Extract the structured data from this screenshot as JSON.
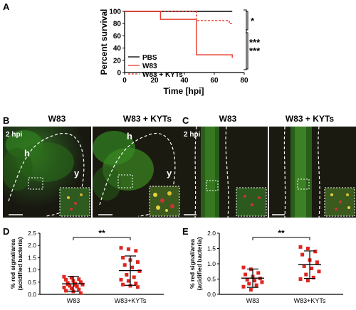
{
  "panels": {
    "A": "A",
    "B": "B",
    "C": "C",
    "D": "D",
    "E": "E"
  },
  "chart_data": [
    {
      "id": "A",
      "type": "line",
      "xlabel": "Time [hpi]",
      "ylabel": "Percent survival",
      "xlim": [
        0,
        80
      ],
      "ylim": [
        0,
        100
      ],
      "xticks": [
        "0",
        "20",
        "40",
        "60",
        "80"
      ],
      "yticks": [
        "0",
        "20",
        "40",
        "60",
        "80",
        "100"
      ],
      "legend_position": "left-bottom",
      "series": [
        {
          "name": "PBS",
          "color": "#000000",
          "dash": "solid",
          "steps": [
            [
              0,
              100
            ],
            [
              72,
              100
            ]
          ]
        },
        {
          "name": "W83",
          "color": "#e8392f",
          "dash": "solid",
          "steps": [
            [
              0,
              100
            ],
            [
              24,
              100
            ],
            [
              24,
              87
            ],
            [
              48,
              87
            ],
            [
              48,
              29
            ],
            [
              72,
              29
            ],
            [
              72,
              24
            ]
          ]
        },
        {
          "name": "W83 + KYTs",
          "color": "#e8392f",
          "dash": "dashed",
          "steps": [
            [
              0,
              100
            ],
            [
              48,
              100
            ],
            [
              48,
              85
            ],
            [
              70,
              85
            ],
            [
              70,
              80
            ],
            [
              72,
              80
            ],
            [
              72,
              79
            ]
          ]
        }
      ],
      "significance": [
        "*",
        "***",
        "***"
      ]
    },
    {
      "id": "D",
      "type": "scatter",
      "ylabel_line1": "% red signal/area",
      "ylabel_line2": "(acidified bacteria)",
      "categories": [
        "W83",
        "W83+KYTs"
      ],
      "yticks": [
        "0.0",
        "0.5",
        "1.0",
        "1.5",
        "2.0",
        "2.5"
      ],
      "ylim": [
        0,
        2.5
      ],
      "significance": "**",
      "groups": [
        {
          "name": "W83",
          "mean": 0.43,
          "sd": 0.3,
          "points": [
            0.72,
            0.68,
            0.62,
            0.6,
            0.55,
            0.5,
            0.47,
            0.44,
            0.4,
            0.35,
            0.32,
            0.28,
            0.25,
            0.2,
            0.15,
            0.12,
            0.05,
            0.42,
            0.38
          ]
        },
        {
          "name": "W83+KYTs",
          "mean": 0.97,
          "sd": 0.6,
          "points": [
            1.9,
            1.85,
            1.78,
            1.5,
            1.4,
            1.32,
            1.2,
            1.1,
            0.95,
            0.8,
            0.7,
            0.6,
            0.55,
            0.45,
            0.4,
            0.35,
            0.3
          ]
        }
      ]
    },
    {
      "id": "E",
      "type": "scatter",
      "ylabel_line1": "% red signal/area",
      "ylabel_line2": "(acidified bacteria)",
      "categories": [
        "W83",
        "W83+KYTs"
      ],
      "yticks": [
        "0.0",
        "0.5",
        "1.0",
        "1.5",
        "2.0"
      ],
      "ylim": [
        0,
        2.0
      ],
      "significance": "**",
      "groups": [
        {
          "name": "W83",
          "mean": 0.53,
          "sd": 0.3,
          "points": [
            0.88,
            0.82,
            0.7,
            0.65,
            0.58,
            0.52,
            0.48,
            0.45,
            0.4,
            0.35,
            0.3,
            0.25,
            0.15
          ]
        },
        {
          "name": "W83+KYTs",
          "mean": 0.97,
          "sd": 0.45,
          "points": [
            1.55,
            1.5,
            1.4,
            1.3,
            1.12,
            1.05,
            0.92,
            0.85,
            0.75,
            0.65,
            0.55,
            0.5,
            0.45
          ]
        }
      ]
    }
  ],
  "panel_B": {
    "left_title": "W83",
    "right_title": "W83 + KYTs",
    "time_label": "2 hpi",
    "label_h": "h",
    "label_y": "y"
  },
  "panel_C": {
    "left_title": "W83",
    "right_title": "W83 + KYTs",
    "time_label": "2 hpi"
  },
  "colors": {
    "red": "#e8392f",
    "dark_bg": "#1b1a10",
    "green": "#3fae2a"
  }
}
